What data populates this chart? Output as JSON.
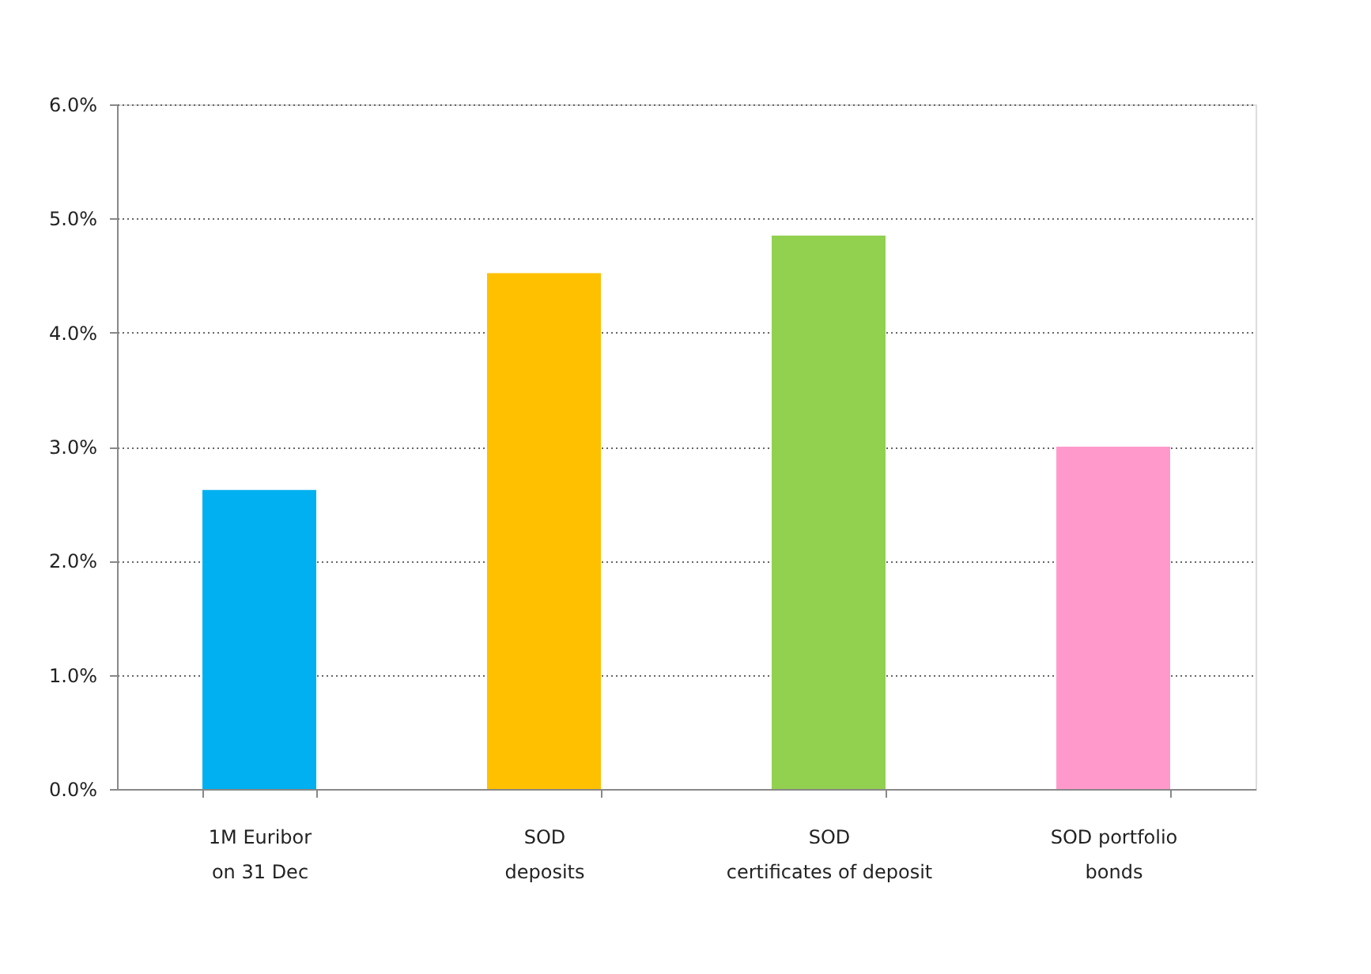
{
  "chart_data": {
    "type": "bar",
    "categories": [
      "1M Euribor\non 31 Dec",
      "SOD\ndeposits",
      "SOD\ncertificates of deposit",
      "SOD portfolio\nbonds"
    ],
    "values": [
      2.62,
      4.52,
      4.85,
      3.0
    ],
    "colors": [
      "#00b0f0",
      "#ffc000",
      "#92d050",
      "#ff99cc"
    ],
    "ylim": [
      0,
      6
    ],
    "yticks": [
      {
        "value": 0,
        "label": "0.0%"
      },
      {
        "value": 1,
        "label": "1.0%"
      },
      {
        "value": 2,
        "label": "2.0%"
      },
      {
        "value": 3,
        "label": "3.0%"
      },
      {
        "value": 4,
        "label": "4.0%"
      },
      {
        "value": 5,
        "label": "5.0%"
      },
      {
        "value": 6,
        "label": "6.0%"
      }
    ],
    "grid": "y",
    "legend": false
  }
}
